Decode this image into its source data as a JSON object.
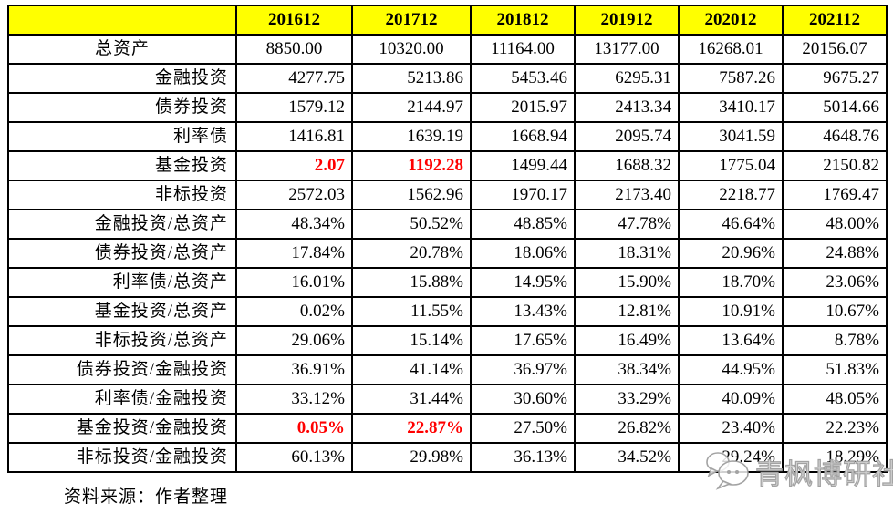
{
  "chart_data": {
    "type": "table",
    "title": "",
    "columns": [
      "201612",
      "201712",
      "201812",
      "201912",
      "202012",
      "202112"
    ],
    "rows": [
      {
        "label": "总资产",
        "values": [
          "8850.00",
          "10320.00",
          "11164.00",
          "13177.00",
          "16268.01",
          "20156.07"
        ],
        "red_indices": []
      },
      {
        "label": "金融投资",
        "values": [
          "4277.75",
          "5213.86",
          "5453.46",
          "6295.31",
          "7587.26",
          "9675.27"
        ],
        "red_indices": []
      },
      {
        "label": "债券投资",
        "values": [
          "1579.12",
          "2144.97",
          "2015.97",
          "2413.34",
          "3410.17",
          "5014.66"
        ],
        "red_indices": []
      },
      {
        "label": "利率债",
        "values": [
          "1416.81",
          "1639.19",
          "1668.94",
          "2095.74",
          "3041.59",
          "4648.76"
        ],
        "red_indices": []
      },
      {
        "label": "基金投资",
        "values": [
          "2.07",
          "1192.28",
          "1499.44",
          "1688.32",
          "1775.04",
          "2150.82"
        ],
        "red_indices": [
          0,
          1
        ]
      },
      {
        "label": "非标投资",
        "values": [
          "2572.03",
          "1562.96",
          "1970.17",
          "2173.40",
          "2218.77",
          "1769.47"
        ],
        "red_indices": []
      },
      {
        "label": "金融投资/总资产",
        "values": [
          "48.34%",
          "50.52%",
          "48.85%",
          "47.78%",
          "46.64%",
          "48.00%"
        ],
        "red_indices": []
      },
      {
        "label": "债券投资/总资产",
        "values": [
          "17.84%",
          "20.78%",
          "18.06%",
          "18.31%",
          "20.96%",
          "24.88%"
        ],
        "red_indices": []
      },
      {
        "label": "利率债/总资产",
        "values": [
          "16.01%",
          "15.88%",
          "14.95%",
          "15.90%",
          "18.70%",
          "23.06%"
        ],
        "red_indices": []
      },
      {
        "label": "基金投资/总资产",
        "values": [
          "0.02%",
          "11.55%",
          "13.43%",
          "12.81%",
          "10.91%",
          "10.67%"
        ],
        "red_indices": []
      },
      {
        "label": "非标投资/总资产",
        "values": [
          "29.06%",
          "15.14%",
          "17.65%",
          "16.49%",
          "13.64%",
          "8.78%"
        ],
        "red_indices": []
      },
      {
        "label": "债券投资/金融投资",
        "values": [
          "36.91%",
          "41.14%",
          "36.97%",
          "38.34%",
          "44.95%",
          "51.83%"
        ],
        "red_indices": []
      },
      {
        "label": "利率债/金融投资",
        "values": [
          "33.12%",
          "31.44%",
          "30.60%",
          "33.29%",
          "40.09%",
          "48.05%"
        ],
        "red_indices": []
      },
      {
        "label": "基金投资/金融投资",
        "values": [
          "0.05%",
          "22.87%",
          "27.50%",
          "26.82%",
          "23.40%",
          "22.23%"
        ],
        "red_indices": [
          0,
          1
        ]
      },
      {
        "label": "非标投资/金融投资",
        "values": [
          "60.13%",
          "29.98%",
          "36.13%",
          "34.52%",
          "29.24%",
          "18.29%"
        ],
        "red_indices": []
      }
    ],
    "corner_label": "",
    "legend_position": "none",
    "grid": true
  },
  "colors": {
    "header_bg": "#FFFF00",
    "highlight_red": "#FF0000",
    "border": "#000000",
    "watermark_gray": "#A3A3A3"
  },
  "footer": {
    "source_note": "资料来源：作者整理"
  },
  "watermark": {
    "text": "青枫博研社",
    "logo": "speech-bubble-icon"
  }
}
